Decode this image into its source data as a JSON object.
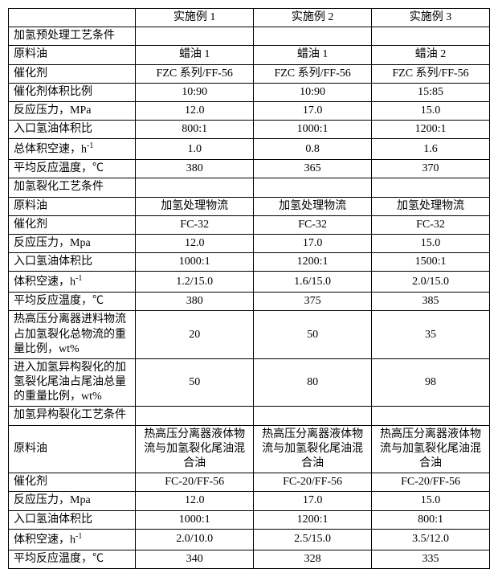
{
  "header": {
    "c0": "",
    "c1": "实施例 1",
    "c2": "实施例 2",
    "c3": "实施例 3"
  },
  "sec1": {
    "title": "加氢预处理工艺条件"
  },
  "rows1": [
    {
      "label": "原料油",
      "v1": "蜡油 1",
      "v2": "蜡油 1",
      "v3": "蜡油 2"
    },
    {
      "label": "催化剂",
      "v1": "FZC 系列/FF-56",
      "v2": "FZC 系列/FF-56",
      "v3": "FZC 系列/FF-56"
    },
    {
      "label": "催化剂体积比例",
      "v1": "10:90",
      "v2": "10:90",
      "v3": "15:85"
    },
    {
      "label": "反应压力，MPa",
      "v1": "12.0",
      "v2": "17.0",
      "v3": "15.0"
    },
    {
      "label": "入口氢油体积比",
      "v1": "800:1",
      "v2": "1000:1",
      "v3": "1200:1"
    },
    {
      "label": "总体积空速，h",
      "sup": "-1",
      "v1": "1.0",
      "v2": "0.8",
      "v3": "1.6"
    },
    {
      "label": "平均反应温度，℃",
      "v1": "380",
      "v2": "365",
      "v3": "370"
    }
  ],
  "sec2": {
    "title": "加氢裂化工艺条件"
  },
  "rows2": [
    {
      "label": "原料油",
      "v1": "加氢处理物流",
      "v2": "加氢处理物流",
      "v3": "加氢处理物流"
    },
    {
      "label": "催化剂",
      "v1": "FC-32",
      "v2": "FC-32",
      "v3": "FC-32"
    },
    {
      "label": "反应压力，Mpa",
      "v1": "12.0",
      "v2": "17.0",
      "v3": "15.0"
    },
    {
      "label": "入口氢油体积比",
      "v1": "1000:1",
      "v2": "1200:1",
      "v3": "1500:1"
    },
    {
      "label": "体积空速，h",
      "sup": "-1",
      "v1": "1.2/15.0",
      "v2": "1.6/15.0",
      "v3": "2.0/15.0"
    },
    {
      "label": "平均反应温度，℃",
      "v1": "380",
      "v2": "375",
      "v3": "385"
    }
  ],
  "rows2b": [
    {
      "label": "热高压分离器进料物流占加氢裂化总物流的重量比例，wt%",
      "v1": "20",
      "v2": "50",
      "v3": "35"
    },
    {
      "label": "进入加氢异构裂化的加氢裂化尾油占尾油总量的重量比例，wt%",
      "v1": "50",
      "v2": "80",
      "v3": "98"
    }
  ],
  "sec3": {
    "title": "加氢异构裂化工艺条件"
  },
  "rows3a": [
    {
      "label": "原料油",
      "v1": "热高压分离器液体物流与加氢裂化尾油混合油",
      "v2": "热高压分离器液体物流与加氢裂化尾油混合油",
      "v3": "热高压分离器液体物流与加氢裂化尾油混合油"
    }
  ],
  "rows3": [
    {
      "label": "催化剂",
      "v1": "FC-20/FF-56",
      "v2": "FC-20/FF-56",
      "v3": "FC-20/FF-56"
    },
    {
      "label": "反应压力，Mpa",
      "v1": "12.0",
      "v2": "17.0",
      "v3": "15.0"
    },
    {
      "label": "入口氢油体积比",
      "v1": "1000:1",
      "v2": "1200:1",
      "v3": "800:1"
    },
    {
      "label": "体积空速，h",
      "sup": "-1",
      "v1": "2.0/10.0",
      "v2": "2.5/15.0",
      "v3": "3.5/12.0"
    },
    {
      "label": "平均反应温度，℃",
      "v1": "340",
      "v2": "328",
      "v3": "335"
    }
  ]
}
